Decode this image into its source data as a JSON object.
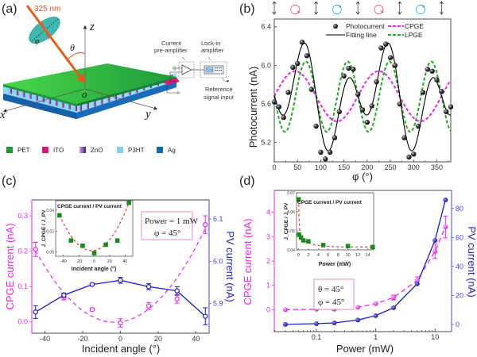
{
  "panel_labels": [
    "(a)",
    "(b)",
    "(c)",
    "(d)"
  ],
  "panel_a": {
    "laser_label": "325 nm",
    "axis_z": "z",
    "axis_x": "x",
    "axis_y": "y",
    "origin": "o",
    "theta": "θ",
    "phi": "φ",
    "current_preamp": [
      "Current",
      "pre-amplifier"
    ],
    "lockin": [
      "Lock-in",
      "amplifier"
    ],
    "reference": [
      "Reference",
      "signal input"
    ],
    "legend": [
      {
        "label": "PET",
        "color": "#1a9a3c"
      },
      {
        "label": "ITO",
        "color": "#e0147c"
      },
      {
        "label": "ZnO",
        "color": "#6a2a8a"
      },
      {
        "label": "P3HT",
        "color": "#7fd0f0"
      },
      {
        "label": "Ag",
        "color": "#1566b0"
      }
    ],
    "colors": {
      "laser": "#e85a1a",
      "pet": "#3cc83c",
      "p3ht": "#8ad6f2",
      "ag": "#1f78c8",
      "ito": "#e0147c",
      "zno": "#7a4aa0",
      "polarizer": "#3fb8b0"
    }
  },
  "chart_data": [
    {
      "id": "b",
      "type": "line",
      "title": "",
      "xlabel": "φ (°)",
      "ylabel": "Photocurrent  (nA)",
      "xlim": [
        0,
        380
      ],
      "ylim": [
        5.0,
        6.48
      ],
      "xticks": [
        0,
        50,
        100,
        150,
        200,
        250,
        300,
        350
      ],
      "yticks": [
        5.2,
        5.6,
        6.0,
        6.4
      ],
      "polarization_marks": [
        "linear",
        "left-circular",
        "linear",
        "right-circular",
        "linear",
        "left-circular",
        "linear",
        "right-circular",
        "linear"
      ],
      "polarization_colors": {
        "left-circular": "#e0609a",
        "right-circular": "#40b0e0"
      },
      "legend": [
        {
          "label": "Photocurrent",
          "style": "sphere-marker",
          "color": "#111111"
        },
        {
          "label": "CPGE",
          "style": "dashed",
          "color": "#ee22ee"
        },
        {
          "label": "Fitting line",
          "style": "solid",
          "color": "#000000"
        },
        {
          "label": "LPGE",
          "style": "dashed",
          "color": "#22aa22"
        }
      ],
      "series": [
        {
          "name": "Photocurrent",
          "x": [
            0,
            10,
            20,
            30,
            40,
            50,
            60,
            70,
            80,
            90,
            100,
            110,
            120,
            130,
            140,
            150,
            160,
            170,
            180,
            190,
            200,
            210,
            220,
            230,
            240,
            250,
            260,
            270,
            280,
            290,
            300,
            310,
            320,
            330,
            340,
            350,
            360,
            370,
            380
          ],
          "values": [
            5.62,
            5.57,
            5.46,
            5.72,
            5.98,
            6.02,
            6.24,
            6.1,
            5.75,
            5.37,
            5.1,
            5.03,
            5.1,
            5.25,
            5.52,
            5.89,
            5.97,
            5.96,
            5.7,
            5.54,
            5.41,
            5.58,
            5.83,
            6.18,
            6.22,
            6.08,
            6.0,
            5.6,
            5.25,
            5.05,
            5.08,
            5.37,
            5.72,
            5.96,
            5.94,
            5.85,
            5.73,
            5.52,
            5.57
          ]
        },
        {
          "name": "CPGE",
          "model": "C + A*sin(2φ)",
          "C": 5.68,
          "A": 0.26
        },
        {
          "name": "LPGE",
          "model": "C + L*cos(4(φ-68°))",
          "C": 5.675,
          "L": 0.365
        },
        {
          "name": "Fitting line",
          "model": "CPGE + LPGE - C"
        }
      ]
    },
    {
      "id": "c",
      "type": "line",
      "xlabel": "Incident angle (°)",
      "ylabel_left": "CPGE current (nA)",
      "ylabel_right": "PV current (nA)",
      "xlim": [
        -47,
        47
      ],
      "ylim_left": [
        -0.032,
        0.345
      ],
      "ylim_right": [
        5.83,
        6.145
      ],
      "xticks": [
        -40,
        -20,
        0,
        20,
        40
      ],
      "yticks_left": [
        0.0,
        0.1,
        0.2,
        0.3
      ],
      "yticks_right": [
        5.9,
        6.0,
        6.1
      ],
      "annotation": [
        "Power = 1 mW",
        "φ = 45°"
      ],
      "colors": {
        "cpge": "#ee22ee",
        "pv": "#1a1acc"
      },
      "x": [
        -45,
        -30,
        -15,
        0,
        15,
        30,
        45
      ],
      "series": [
        {
          "name": "CPGE current",
          "axis": "left",
          "values": [
            0.205,
            0.07,
            0.035,
            -0.003,
            0.045,
            0.065,
            0.275
          ],
          "errors": [
            0.02,
            0.008,
            0.004,
            0.012,
            0.01,
            0.012,
            0.025
          ],
          "style": "dashed-quadratic"
        },
        {
          "name": "PV current",
          "axis": "right",
          "values": [
            5.88,
            5.92,
            5.945,
            5.955,
            5.94,
            5.93,
            5.87
          ],
          "errors": [
            0.015,
            0.005,
            0.003,
            0.007,
            0.007,
            0.01,
            0.02
          ],
          "style": "solid"
        }
      ],
      "inset": {
        "title": "CPGE current / PV current",
        "xlabel": "Incident angle  (°)",
        "ylabel": "J_CPGE / J_PV",
        "xlim": [
          -50,
          50
        ],
        "ylim": [
          -0.004,
          0.049
        ],
        "xticks": [
          -40,
          -20,
          0,
          20,
          40
        ],
        "yticks": [
          0.0,
          0.02,
          0.04
        ],
        "x": [
          -45,
          -30,
          -15,
          0,
          15,
          30,
          45
        ],
        "values": [
          0.035,
          0.011,
          0.006,
          -0.001,
          0.007,
          0.011,
          0.047
        ]
      }
    },
    {
      "id": "d",
      "type": "line",
      "xscale": "log",
      "xlabel": "Power (mW)",
      "ylabel_left": "CPGE current (nA)",
      "ylabel_right": "PV current (nA)",
      "xlim": [
        0.0195,
        19
      ],
      "ylim_left": [
        -0.9,
        4.9
      ],
      "ylim_right": [
        -5,
        92.5
      ],
      "xticks": [
        0.1,
        1,
        10
      ],
      "xtick_labels": [
        "0.1",
        "1",
        "10"
      ],
      "yticks_left": [
        0,
        1,
        2,
        3,
        4
      ],
      "yticks_right": [
        0,
        20,
        40,
        60,
        80
      ],
      "annotation": [
        "θ = 45°",
        "φ = 45°"
      ],
      "colors": {
        "cpge": "#ee22ee",
        "pv": "#1a1acc"
      },
      "x": [
        0.03,
        0.1,
        0.2,
        0.5,
        1,
        2,
        5,
        10,
        15
      ],
      "series": [
        {
          "name": "CPGE current",
          "axis": "left",
          "values": [
            0.0,
            0.02,
            0.02,
            0.1,
            0.25,
            0.5,
            1.2,
            2.4,
            3.4
          ],
          "errors": [
            0.02,
            0.02,
            0.02,
            0.04,
            0.06,
            0.1,
            0.15,
            0.3,
            0.45
          ],
          "style": "dashed"
        },
        {
          "name": "PV current",
          "axis": "right",
          "values": [
            0,
            0.5,
            1,
            3,
            6,
            11.5,
            28,
            58,
            86
          ],
          "style": "solid"
        }
      ],
      "inset": {
        "title": "CPGE current / PV current",
        "xlabel": "Power (mW)",
        "ylabel": "J_CPGE / J_PV",
        "xlim": [
          -0.4,
          15.2
        ],
        "ylim": [
          0.04,
          0.07
        ],
        "xticks": [
          0,
          2,
          4,
          6,
          8,
          10,
          12,
          14
        ],
        "yticks": [
          0.04,
          0.05,
          0.06,
          0.07
        ],
        "x": [
          0.03,
          0.1,
          0.5,
          1,
          2,
          5,
          10,
          15
        ],
        "values": [
          0.0665,
          0.048,
          0.0465,
          0.045,
          0.0445,
          0.0425,
          0.042,
          0.0415
        ]
      }
    }
  ]
}
